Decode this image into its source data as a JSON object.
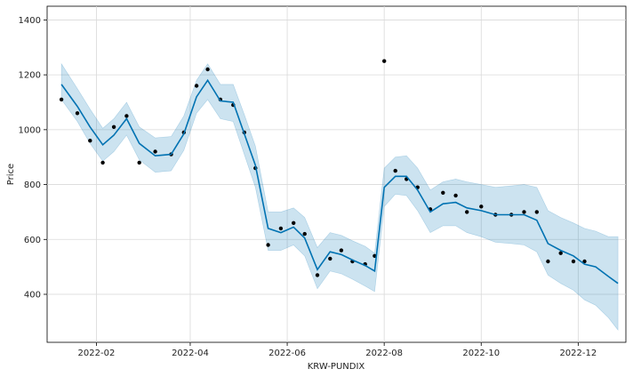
{
  "chart_data": {
    "type": "scatter",
    "xlabel": "KRW-PUNDIX",
    "ylabel": "Price",
    "x_ticks": [
      "2022-02",
      "2022-04",
      "2022-06",
      "2022-08",
      "2022-10",
      "2022-12"
    ],
    "y_ticks": [
      400,
      600,
      800,
      1000,
      1200,
      1400
    ],
    "xlim": [
      "2022-01-01",
      "2022-12-31"
    ],
    "ylim": [
      225,
      1450
    ],
    "grid": true,
    "colors": {
      "observed": "#000000",
      "forecast": "#0072B2",
      "interval": "#0072B2"
    },
    "series": [
      {
        "role": "forecast",
        "x": [
          "2022-01-10",
          "2022-01-20",
          "2022-01-28",
          "2022-02-05",
          "2022-02-12",
          "2022-02-20",
          "2022-02-28",
          "2022-03-10",
          "2022-03-20",
          "2022-03-28",
          "2022-04-05",
          "2022-04-12",
          "2022-04-20",
          "2022-04-28",
          "2022-05-05",
          "2022-05-12",
          "2022-05-20",
          "2022-05-28",
          "2022-06-05",
          "2022-06-12",
          "2022-06-20",
          "2022-06-28",
          "2022-07-05",
          "2022-07-12",
          "2022-07-20",
          "2022-07-26",
          "2022-08-01",
          "2022-08-08",
          "2022-08-15",
          "2022-08-22",
          "2022-08-30",
          "2022-09-07",
          "2022-09-15",
          "2022-09-22",
          "2022-10-01",
          "2022-10-10",
          "2022-10-20",
          "2022-10-28",
          "2022-11-05",
          "2022-11-12",
          "2022-11-20",
          "2022-11-28",
          "2022-12-05",
          "2022-12-12",
          "2022-12-20",
          "2022-12-26"
        ],
        "values": [
          1165,
          1085,
          1010,
          945,
          980,
          1040,
          950,
          905,
          910,
          985,
          1120,
          1180,
          1105,
          1100,
          985,
          870,
          640,
          625,
          645,
          605,
          490,
          555,
          545,
          525,
          505,
          485,
          790,
          830,
          830,
          780,
          700,
          730,
          735,
          715,
          705,
          690,
          690,
          690,
          670,
          585,
          560,
          540,
          510,
          500,
          465,
          440
        ],
        "lower": [
          1110,
          1030,
          950,
          885,
          920,
          980,
          890,
          845,
          850,
          925,
          1060,
          1110,
          1040,
          1030,
          910,
          790,
          560,
          560,
          580,
          540,
          420,
          485,
          475,
          455,
          430,
          410,
          720,
          765,
          760,
          705,
          625,
          650,
          650,
          625,
          610,
          590,
          585,
          580,
          555,
          470,
          440,
          415,
          380,
          360,
          315,
          270
        ],
        "upper": [
          1240,
          1150,
          1075,
          1005,
          1040,
          1100,
          1010,
          970,
          975,
          1050,
          1180,
          1240,
          1165,
          1165,
          1055,
          940,
          700,
          700,
          715,
          680,
          570,
          625,
          615,
          595,
          575,
          550,
          860,
          900,
          905,
          860,
          780,
          810,
          820,
          810,
          800,
          790,
          795,
          800,
          790,
          705,
          680,
          660,
          640,
          630,
          610,
          610
        ]
      },
      {
        "role": "observed",
        "x": [
          "2022-01-10",
          "2022-01-20",
          "2022-01-28",
          "2022-02-05",
          "2022-02-12",
          "2022-02-20",
          "2022-02-28",
          "2022-03-10",
          "2022-03-20",
          "2022-03-28",
          "2022-04-05",
          "2022-04-12",
          "2022-04-20",
          "2022-04-28",
          "2022-05-05",
          "2022-05-12",
          "2022-05-20",
          "2022-05-28",
          "2022-06-05",
          "2022-06-12",
          "2022-06-20",
          "2022-06-28",
          "2022-07-05",
          "2022-07-12",
          "2022-07-20",
          "2022-07-26",
          "2022-08-01",
          "2022-08-08",
          "2022-08-15",
          "2022-08-22",
          "2022-08-30",
          "2022-09-07",
          "2022-09-15",
          "2022-09-22",
          "2022-10-01",
          "2022-10-10",
          "2022-10-20",
          "2022-10-28",
          "2022-11-05",
          "2022-11-12",
          "2022-11-20",
          "2022-11-28",
          "2022-12-05"
        ],
        "values": [
          1110,
          1060,
          960,
          880,
          1010,
          1050,
          880,
          920,
          910,
          990,
          1160,
          1220,
          1110,
          1090,
          990,
          860,
          580,
          640,
          660,
          620,
          470,
          530,
          560,
          520,
          510,
          540,
          1250,
          850,
          820,
          790,
          710,
          770,
          760,
          700,
          720,
          690,
          690,
          700,
          700,
          520,
          550,
          520,
          520
        ]
      }
    ]
  }
}
